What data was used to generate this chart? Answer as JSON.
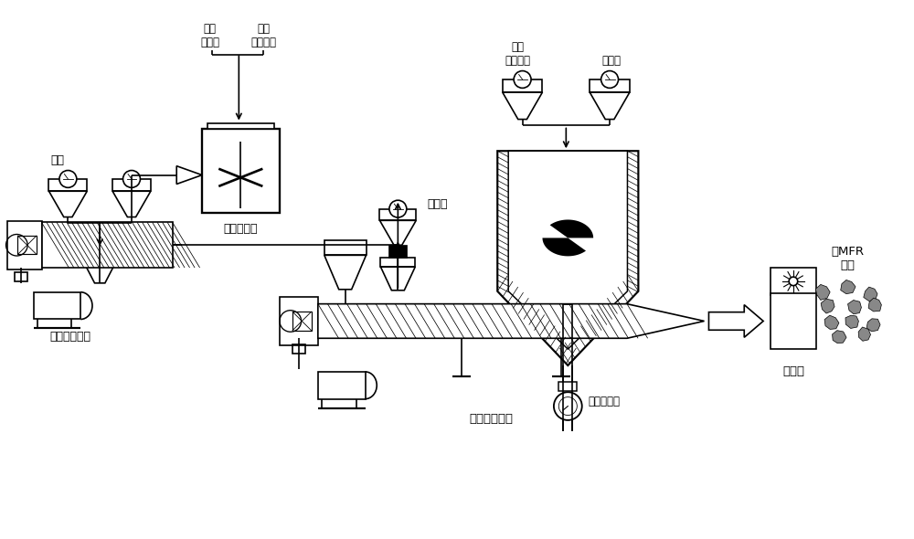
{
  "bg_color": "#ffffff",
  "lc": "#000000",
  "labels": {
    "homoPP": "均聚\n聚丙烯",
    "peroxide": "有机\n过氧化物",
    "carbon_black": "炭黑",
    "high_mixer": "高速混合机",
    "liquid_epr": "液体\n乙丙橡胶",
    "paraffin_oil": "石蜡油",
    "antioxidant": "抗氧剂",
    "liquid_pump": "液体计量泵",
    "twin_rotor": "双转子混炼机",
    "single_screw": "单螺杆挤出机",
    "pelletizer": "切粒机",
    "high_mfr": "高MFR\n母粒"
  },
  "layout": {
    "figw": 10.0,
    "figh": 5.9,
    "xlim": [
      0,
      10
    ],
    "ylim": [
      0,
      5.9
    ]
  }
}
